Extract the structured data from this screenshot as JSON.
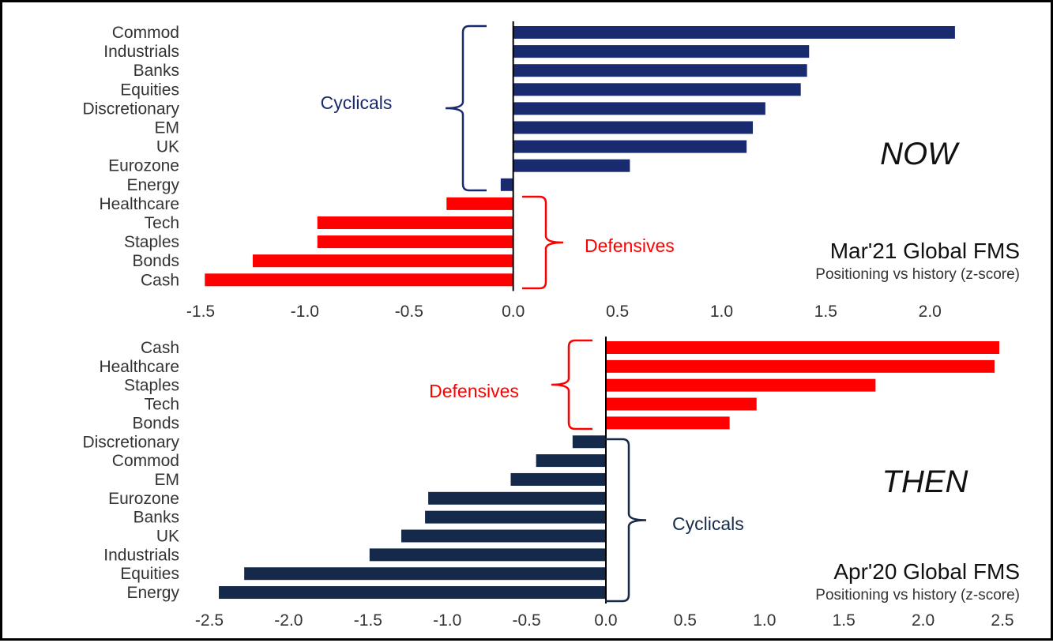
{
  "colors": {
    "cyclicals_now": "#1a2a6e",
    "cyclicals_then": "#152a4a",
    "defensives": "#ff0000"
  },
  "chart_data": [
    {
      "type": "bar",
      "orientation": "horizontal",
      "big_label": "NOW",
      "title": "Mar'21 Global FMS",
      "subtitle": "Positioning vs history (z-score)",
      "categories": [
        "Commod",
        "Industrials",
        "Banks",
        "Equities",
        "Discretionary",
        "EM",
        "UK",
        "Eurozone",
        "Energy",
        "Healthcare",
        "Tech",
        "Staples",
        "Bonds",
        "Cash"
      ],
      "values": [
        2.12,
        1.42,
        1.41,
        1.38,
        1.21,
        1.15,
        1.12,
        0.56,
        -0.06,
        -0.32,
        -0.94,
        -0.94,
        -1.25,
        -1.48
      ],
      "groups": [
        "Cyclicals",
        "Cyclicals",
        "Cyclicals",
        "Cyclicals",
        "Cyclicals",
        "Cyclicals",
        "Cyclicals",
        "Cyclicals",
        "Cyclicals",
        "Defensives",
        "Defensives",
        "Defensives",
        "Defensives",
        "Defensives"
      ],
      "group_labels": {
        "cyclicals": "Cyclicals",
        "defensives": "Defensives"
      },
      "xlim": [
        -1.5,
        2.2
      ],
      "ticks": [
        "-1.5",
        "-1.0",
        "-0.5",
        "0.0",
        "0.5",
        "1.0",
        "1.5",
        "2.0"
      ],
      "grid": false
    },
    {
      "type": "bar",
      "orientation": "horizontal",
      "big_label": "THEN",
      "title": "Apr'20 Global FMS",
      "subtitle": "Positioning vs history (z-score)",
      "categories": [
        "Cash",
        "Healthcare",
        "Staples",
        "Tech",
        "Bonds",
        "Discretionary",
        "Commod",
        "EM",
        "Eurozone",
        "Banks",
        "UK",
        "Industrials",
        "Equities",
        "Energy"
      ],
      "values": [
        2.48,
        2.45,
        1.7,
        0.95,
        0.78,
        -0.21,
        -0.44,
        -0.6,
        -1.12,
        -1.14,
        -1.29,
        -1.49,
        -2.28,
        -2.44
      ],
      "groups": [
        "Defensives",
        "Defensives",
        "Defensives",
        "Defensives",
        "Defensives",
        "Cyclicals",
        "Cyclicals",
        "Cyclicals",
        "Cyclicals",
        "Cyclicals",
        "Cyclicals",
        "Cyclicals",
        "Cyclicals",
        "Cyclicals"
      ],
      "group_labels": {
        "cyclicals": "Cyclicals",
        "defensives": "Defensives"
      },
      "xlim": [
        -2.5,
        2.5
      ],
      "ticks": [
        "-2.5",
        "-2.0",
        "-1.5",
        "-1.0",
        "-0.5",
        "0.0",
        "0.5",
        "1.0",
        "1.5",
        "2.0",
        "2.5"
      ],
      "grid": false
    }
  ]
}
